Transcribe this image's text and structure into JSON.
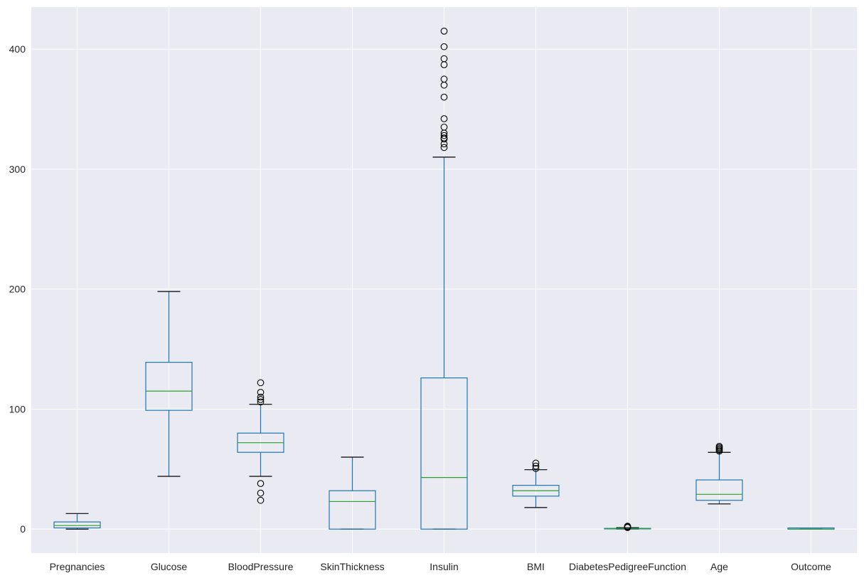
{
  "chart_data": {
    "type": "box",
    "title": "",
    "xlabel": "",
    "ylabel": "",
    "ylim": [
      -20,
      435
    ],
    "yticks": [
      0,
      100,
      200,
      300,
      400
    ],
    "grid": true,
    "colors": {
      "background": "#eaeaf2",
      "grid": "#ffffff",
      "box": "#1f77b4",
      "median": "#2ca02c",
      "whisker_cap": "#000000",
      "outlier": "#000000"
    },
    "categories": [
      "Pregnancies",
      "Glucose",
      "BloodPressure",
      "SkinThickness",
      "Insulin",
      "BMI",
      "DiabetesPedigreeFunction",
      "Age",
      "Outcome"
    ],
    "boxes": [
      {
        "name": "Pregnancies",
        "whislo": 0,
        "q1": 1,
        "med": 3,
        "q3": 6,
        "whishi": 13,
        "fliers": []
      },
      {
        "name": "Glucose",
        "whislo": 44,
        "q1": 99,
        "med": 115,
        "q3": 139,
        "whishi": 198,
        "fliers": []
      },
      {
        "name": "BloodPressure",
        "whislo": 44,
        "q1": 64,
        "med": 72,
        "q3": 80,
        "whishi": 104,
        "fliers": [
          24,
          30,
          38,
          106,
          108,
          110,
          114,
          122
        ]
      },
      {
        "name": "SkinThickness",
        "whislo": 0,
        "q1": 0,
        "med": 23,
        "q3": 32,
        "whishi": 60,
        "fliers": []
      },
      {
        "name": "Insulin",
        "whislo": 0,
        "q1": 0,
        "med": 43,
        "q3": 126,
        "whishi": 310,
        "fliers": [
          318,
          321,
          325,
          326,
          328,
          330,
          335,
          342,
          360,
          370,
          375,
          387,
          392,
          402,
          415
        ]
      },
      {
        "name": "BMI",
        "whislo": 18,
        "q1": 27.5,
        "med": 32,
        "q3": 36.5,
        "whishi": 49.5,
        "fliers": [
          50.5,
          52.5,
          55
        ]
      },
      {
        "name": "DiabetesPedigreeFunction",
        "whislo": 0.08,
        "q1": 0.24,
        "med": 0.37,
        "q3": 0.63,
        "whishi": 1.2,
        "fliers": [
          1.3,
          1.6,
          1.9,
          2.2,
          2.42
        ]
      },
      {
        "name": "Age",
        "whislo": 21,
        "q1": 24,
        "med": 29,
        "q3": 41,
        "whishi": 64,
        "fliers": [
          65,
          66,
          67,
          68,
          69
        ]
      },
      {
        "name": "Outcome",
        "whislo": 0,
        "q1": 0,
        "med": 0,
        "q3": 1,
        "whishi": 1,
        "fliers": []
      }
    ]
  }
}
